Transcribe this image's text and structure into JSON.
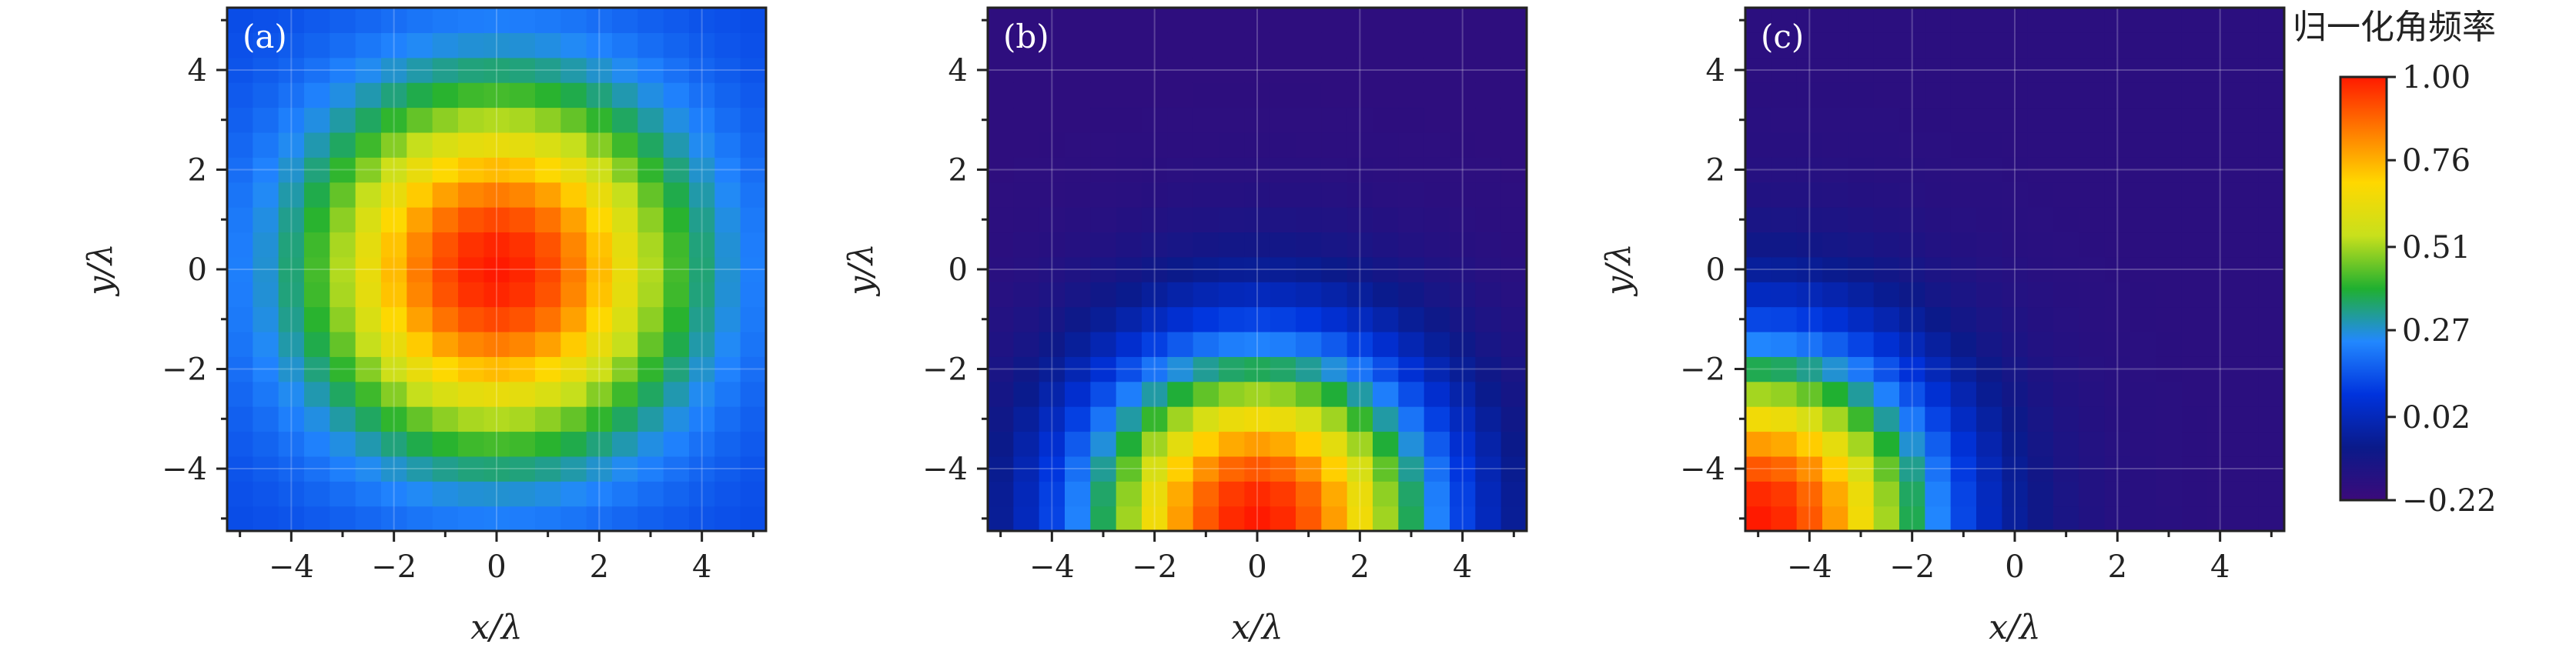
{
  "chart_data": [
    {
      "type": "heatmap",
      "panel_label": "(a)",
      "xlabel": "x/λ",
      "ylabel": "y/λ",
      "xlim": [
        -5.25,
        5.25
      ],
      "ylim": [
        -5.25,
        5.25
      ],
      "x_ticks": [
        "−4",
        "−2",
        "0",
        "2",
        "4"
      ],
      "y_ticks": [
        "−4",
        "−2",
        "0",
        "2",
        "4"
      ],
      "grid_size": 21,
      "peak": {
        "x": 0,
        "y": 0,
        "value": 1.0
      },
      "profile": "gaussian",
      "sigma": 2.4,
      "background": 0.12,
      "value_range": [
        -0.22,
        1.0
      ]
    },
    {
      "type": "heatmap",
      "panel_label": "(b)",
      "xlabel": "x/λ",
      "ylabel": "y/λ",
      "xlim": [
        -5.25,
        5.25
      ],
      "ylim": [
        -5.25,
        5.25
      ],
      "x_ticks": [
        "−4",
        "−2",
        "0",
        "2",
        "4"
      ],
      "y_ticks": [
        "−4",
        "−2",
        "0",
        "2",
        "4"
      ],
      "grid_size": 21,
      "peak": {
        "x": 0,
        "y": -5,
        "value": 1.0
      },
      "profile": "gaussian",
      "sigma": 2.4,
      "background": -0.18,
      "value_range": [
        -0.22,
        1.0
      ]
    },
    {
      "type": "heatmap",
      "panel_label": "(c)",
      "xlabel": "x/λ",
      "ylabel": "y/λ",
      "xlim": [
        -5.25,
        5.25
      ],
      "ylim": [
        -5.25,
        5.25
      ],
      "x_ticks": [
        "−4",
        "−2",
        "0",
        "2",
        "4"
      ],
      "y_ticks": [
        "−4",
        "−2",
        "0",
        "2",
        "4"
      ],
      "grid_size": 21,
      "peak": {
        "x": -5,
        "y": -5,
        "value": 1.0
      },
      "profile": "gaussian",
      "sigma": 2.4,
      "background": -0.17,
      "value_range": [
        -0.22,
        1.0
      ]
    }
  ],
  "colorbar": {
    "title": "归一化角频率",
    "min": -0.22,
    "max": 1.0,
    "tick_values": [
      1.0,
      0.76,
      0.51,
      0.27,
      0.02,
      -0.22
    ],
    "tick_labels": [
      "1.00",
      "0.76",
      "0.51",
      "0.27",
      "0.02",
      "−0.22"
    ],
    "colormap": "jet-like",
    "colors": [
      "#3b0a7a",
      "#0a1a8a",
      "#0033dd",
      "#2288ff",
      "#20b030",
      "#c8e01c",
      "#ffd800",
      "#ff7a00",
      "#ff1a00"
    ]
  }
}
